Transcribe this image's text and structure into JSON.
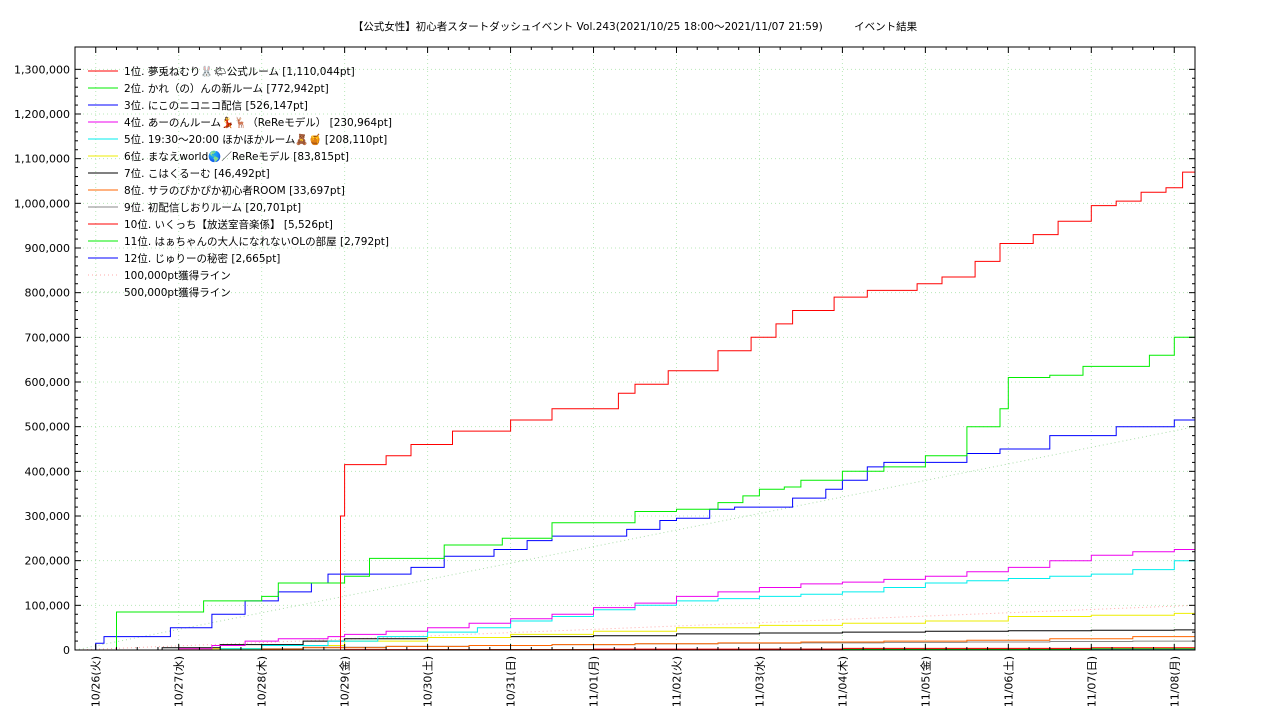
{
  "chart_data": {
    "type": "line",
    "title": "【公式女性】初心者スタートダッシュイベント Vol.243(2021/10/25 18:00～2021/11/07 21:59)　　　イベント結果",
    "xlabel": "",
    "ylabel": "",
    "ylim": [
      0,
      1350000
    ],
    "xlim": [
      "10/25 18:00",
      "11/08 00:00"
    ],
    "grid": true,
    "legend_position": "top-left",
    "yticks": [
      0,
      100000,
      200000,
      300000,
      400000,
      500000,
      600000,
      700000,
      800000,
      900000,
      1000000,
      1100000,
      1200000,
      1300000
    ],
    "ytick_labels": [
      "0",
      "100,000",
      "200,000",
      "300,000",
      "400,000",
      "500,000",
      "600,000",
      "700,000",
      "800,000",
      "900,000",
      "1,000,000",
      "1,100,000",
      "1,200,000",
      "1,300,000"
    ],
    "xtick_labels": [
      "10/26(火)",
      "10/27(水)",
      "10/28(木)",
      "10/29(金)",
      "10/30(土)",
      "10/31(日)",
      "11/01(月)",
      "11/02(火)",
      "11/03(水)",
      "11/04(木)",
      "11/05(金)",
      "11/06(土)",
      "11/07(日)",
      "11/08(月)"
    ],
    "x_unit": "days since 10/26 00:00",
    "series": [
      {
        "name": "1位. 夢兎ねむり🐰🌤公式ルーム [1,110,044pt]",
        "color": "#ff0000",
        "x": [
          -0.25,
          2.9,
          2.95,
          3.0,
          3.3,
          3.5,
          3.8,
          4.3,
          4.8,
          5.0,
          5.5,
          5.8,
          6.3,
          6.5,
          6.9,
          7.2,
          7.5,
          7.9,
          8.2,
          8.4,
          8.9,
          9.3,
          9.6,
          9.9,
          10.2,
          10.6,
          10.9,
          11.3,
          11.6,
          12.0,
          12.3,
          12.6,
          12.9,
          13.1,
          13.25
        ],
        "y": [
          0,
          0,
          300000,
          415000,
          415000,
          435000,
          460000,
          490000,
          490000,
          515000,
          540000,
          540000,
          575000,
          595000,
          625000,
          625000,
          670000,
          700000,
          730000,
          760000,
          790000,
          805000,
          805000,
          820000,
          835000,
          870000,
          910000,
          930000,
          960000,
          995000,
          1005000,
          1025000,
          1035000,
          1070000,
          1110000
        ]
      },
      {
        "name": "2位. かれ（の）んの新ルーム [772,942pt]",
        "color": "#00ee00",
        "x": [
          -0.25,
          0.1,
          0.25,
          0.9,
          1.3,
          2.0,
          2.2,
          3.0,
          3.3,
          4.0,
          4.2,
          4.9,
          5.0,
          5.5,
          6.0,
          6.5,
          7.0,
          7.5,
          7.8,
          8.0,
          8.3,
          8.5,
          9.0,
          9.4,
          9.5,
          10.0,
          10.4,
          10.5,
          10.9,
          11.0,
          11.5,
          11.9,
          12.0,
          12.7,
          12.9,
          13.0,
          13.25
        ],
        "y": [
          0,
          0,
          85000,
          85000,
          110000,
          120000,
          150000,
          165000,
          205000,
          205000,
          235000,
          250000,
          250000,
          285000,
          285000,
          310000,
          315000,
          330000,
          345000,
          360000,
          365000,
          380000,
          400000,
          400000,
          410000,
          435000,
          435000,
          500000,
          540000,
          610000,
          615000,
          635000,
          635000,
          660000,
          660000,
          700000,
          772942
        ]
      },
      {
        "name": "3位. にこのニコニコ配信 [526,147pt]",
        "color": "#0000ff",
        "x": [
          -0.25,
          0.0,
          0.1,
          0.5,
          0.9,
          1.4,
          1.8,
          2.2,
          2.6,
          2.8,
          3.0,
          3.4,
          3.8,
          4.2,
          4.4,
          4.8,
          5.2,
          5.5,
          6.0,
          6.4,
          6.8,
          7.0,
          7.4,
          7.7,
          8.0,
          8.4,
          8.8,
          9.0,
          9.3,
          9.5,
          10.0,
          10.5,
          10.9,
          11.0,
          11.5,
          11.9,
          12.3,
          12.7,
          13.0,
          13.25
        ],
        "y": [
          0,
          15000,
          30000,
          30000,
          50000,
          80000,
          110000,
          130000,
          150000,
          170000,
          170000,
          170000,
          185000,
          210000,
          210000,
          225000,
          245000,
          255000,
          255000,
          270000,
          290000,
          295000,
          315000,
          320000,
          320000,
          340000,
          360000,
          380000,
          410000,
          420000,
          420000,
          440000,
          450000,
          450000,
          480000,
          480000,
          500000,
          500000,
          515000,
          526147
        ]
      },
      {
        "name": "4位. あーのんルーム💃🦌（ReReモデル） [230,964pt]",
        "color": "#ee00ee",
        "x": [
          -0.25,
          1.0,
          1.4,
          1.8,
          2.2,
          2.8,
          3.0,
          3.5,
          4.0,
          4.5,
          5.0,
          5.5,
          6.0,
          6.5,
          7.0,
          7.5,
          8.0,
          8.5,
          9.0,
          9.5,
          10.0,
          10.5,
          11.0,
          11.5,
          12.0,
          12.5,
          13.0,
          13.25
        ],
        "y": [
          0,
          3000,
          10000,
          20000,
          25000,
          30000,
          35000,
          42000,
          50000,
          60000,
          70000,
          80000,
          95000,
          105000,
          120000,
          130000,
          140000,
          148000,
          152000,
          158000,
          165000,
          175000,
          185000,
          200000,
          212000,
          220000,
          225000,
          230964
        ]
      },
      {
        "name": "5位. 19:30〜20:00  ほかほかルーム🧸🍯 [208,110pt]",
        "color": "#00eeee",
        "x": [
          -0.25,
          1.5,
          2.0,
          2.8,
          3.4,
          4.0,
          4.6,
          5.0,
          5.5,
          6.0,
          6.5,
          7.0,
          7.5,
          8.0,
          8.5,
          9.0,
          9.5,
          10.0,
          10.5,
          11.0,
          11.5,
          12.0,
          12.5,
          13.0,
          13.25
        ],
        "y": [
          0,
          3000,
          10000,
          20000,
          30000,
          40000,
          50000,
          65000,
          75000,
          90000,
          100000,
          110000,
          115000,
          120000,
          125000,
          130000,
          140000,
          150000,
          155000,
          160000,
          165000,
          170000,
          180000,
          200000,
          208110
        ]
      },
      {
        "name": "6位. まなえworld🌎／ReReモデル [83,815pt]",
        "color": "#eeee00",
        "x": [
          -0.25,
          1.0,
          2.0,
          3.0,
          4.0,
          5.0,
          6.0,
          7.0,
          8.0,
          9.0,
          10.0,
          11.0,
          12.0,
          13.0,
          13.25
        ],
        "y": [
          0,
          3000,
          10000,
          20000,
          28000,
          35000,
          42000,
          50000,
          55000,
          60000,
          65000,
          75000,
          78000,
          82000,
          83815
        ]
      },
      {
        "name": "7位. こはくるーむ [46,492pt]",
        "color": "#000000",
        "x": [
          -0.25,
          0.8,
          1.5,
          2.5,
          3.0,
          4.0,
          5.0,
          6.0,
          7.0,
          8.0,
          9.0,
          10.0,
          11.0,
          12.0,
          13.0,
          13.25
        ],
        "y": [
          0,
          5000,
          12000,
          20000,
          25000,
          28000,
          30000,
          32000,
          36000,
          38000,
          40000,
          42000,
          43000,
          44000,
          45000,
          46492
        ]
      },
      {
        "name": "8位. サラのぴかぴか初心者ROOM [33,697pt]",
        "color": "#ff6600",
        "x": [
          -0.25,
          1.5,
          2.5,
          3.5,
          4.5,
          5.5,
          6.5,
          7.5,
          8.5,
          9.5,
          10.5,
          11.5,
          12.5,
          13.25
        ],
        "y": [
          0,
          2000,
          5000,
          8000,
          10000,
          12000,
          14000,
          16000,
          18000,
          20000,
          22000,
          25000,
          30000,
          33697
        ]
      },
      {
        "name": "9位. 初配信しおりルーム [20,701pt]",
        "color": "#888888",
        "x": [
          -0.25,
          1.5,
          2.5,
          3.5,
          4.5,
          5.5,
          6.5,
          7.5,
          8.5,
          9.5,
          10.5,
          11.5,
          12.5,
          13.25
        ],
        "y": [
          0,
          3000,
          6000,
          8000,
          10000,
          12000,
          14000,
          15000,
          16000,
          17000,
          18000,
          19000,
          20000,
          20701
        ]
      },
      {
        "name": "10位. いくっち【放送室音楽係】 [5,526pt]",
        "color": "#ff0000",
        "x": [
          -0.25,
          3.0,
          6.0,
          9.0,
          12.0,
          13.25
        ],
        "y": [
          0,
          1000,
          2000,
          3500,
          5000,
          5526
        ]
      },
      {
        "name": "11位. はぁちゃんの大人になれないOLの部屋 [2,792pt]",
        "color": "#00ee00",
        "x": [
          -0.25,
          4.0,
          8.0,
          12.0,
          13.25
        ],
        "y": [
          0,
          800,
          1800,
          2600,
          2792
        ]
      },
      {
        "name": "12位. じゅりーの秘密 [2,665pt]",
        "color": "#0000ff",
        "x": [
          -0.25,
          4.0,
          8.0,
          12.0,
          13.25
        ],
        "y": [
          0,
          700,
          1600,
          2500,
          2665
        ]
      }
    ],
    "reference_lines": [
      {
        "name": "100,000pt獲得ライン",
        "color": "#ffaaaa",
        "x": [
          -0.25,
          13.25
        ],
        "y": [
          0,
          100000
        ]
      },
      {
        "name": "500,000pt獲得ライン",
        "color": "#aaddaa",
        "x": [
          -0.25,
          13.25
        ],
        "y": [
          0,
          500000
        ]
      }
    ]
  }
}
